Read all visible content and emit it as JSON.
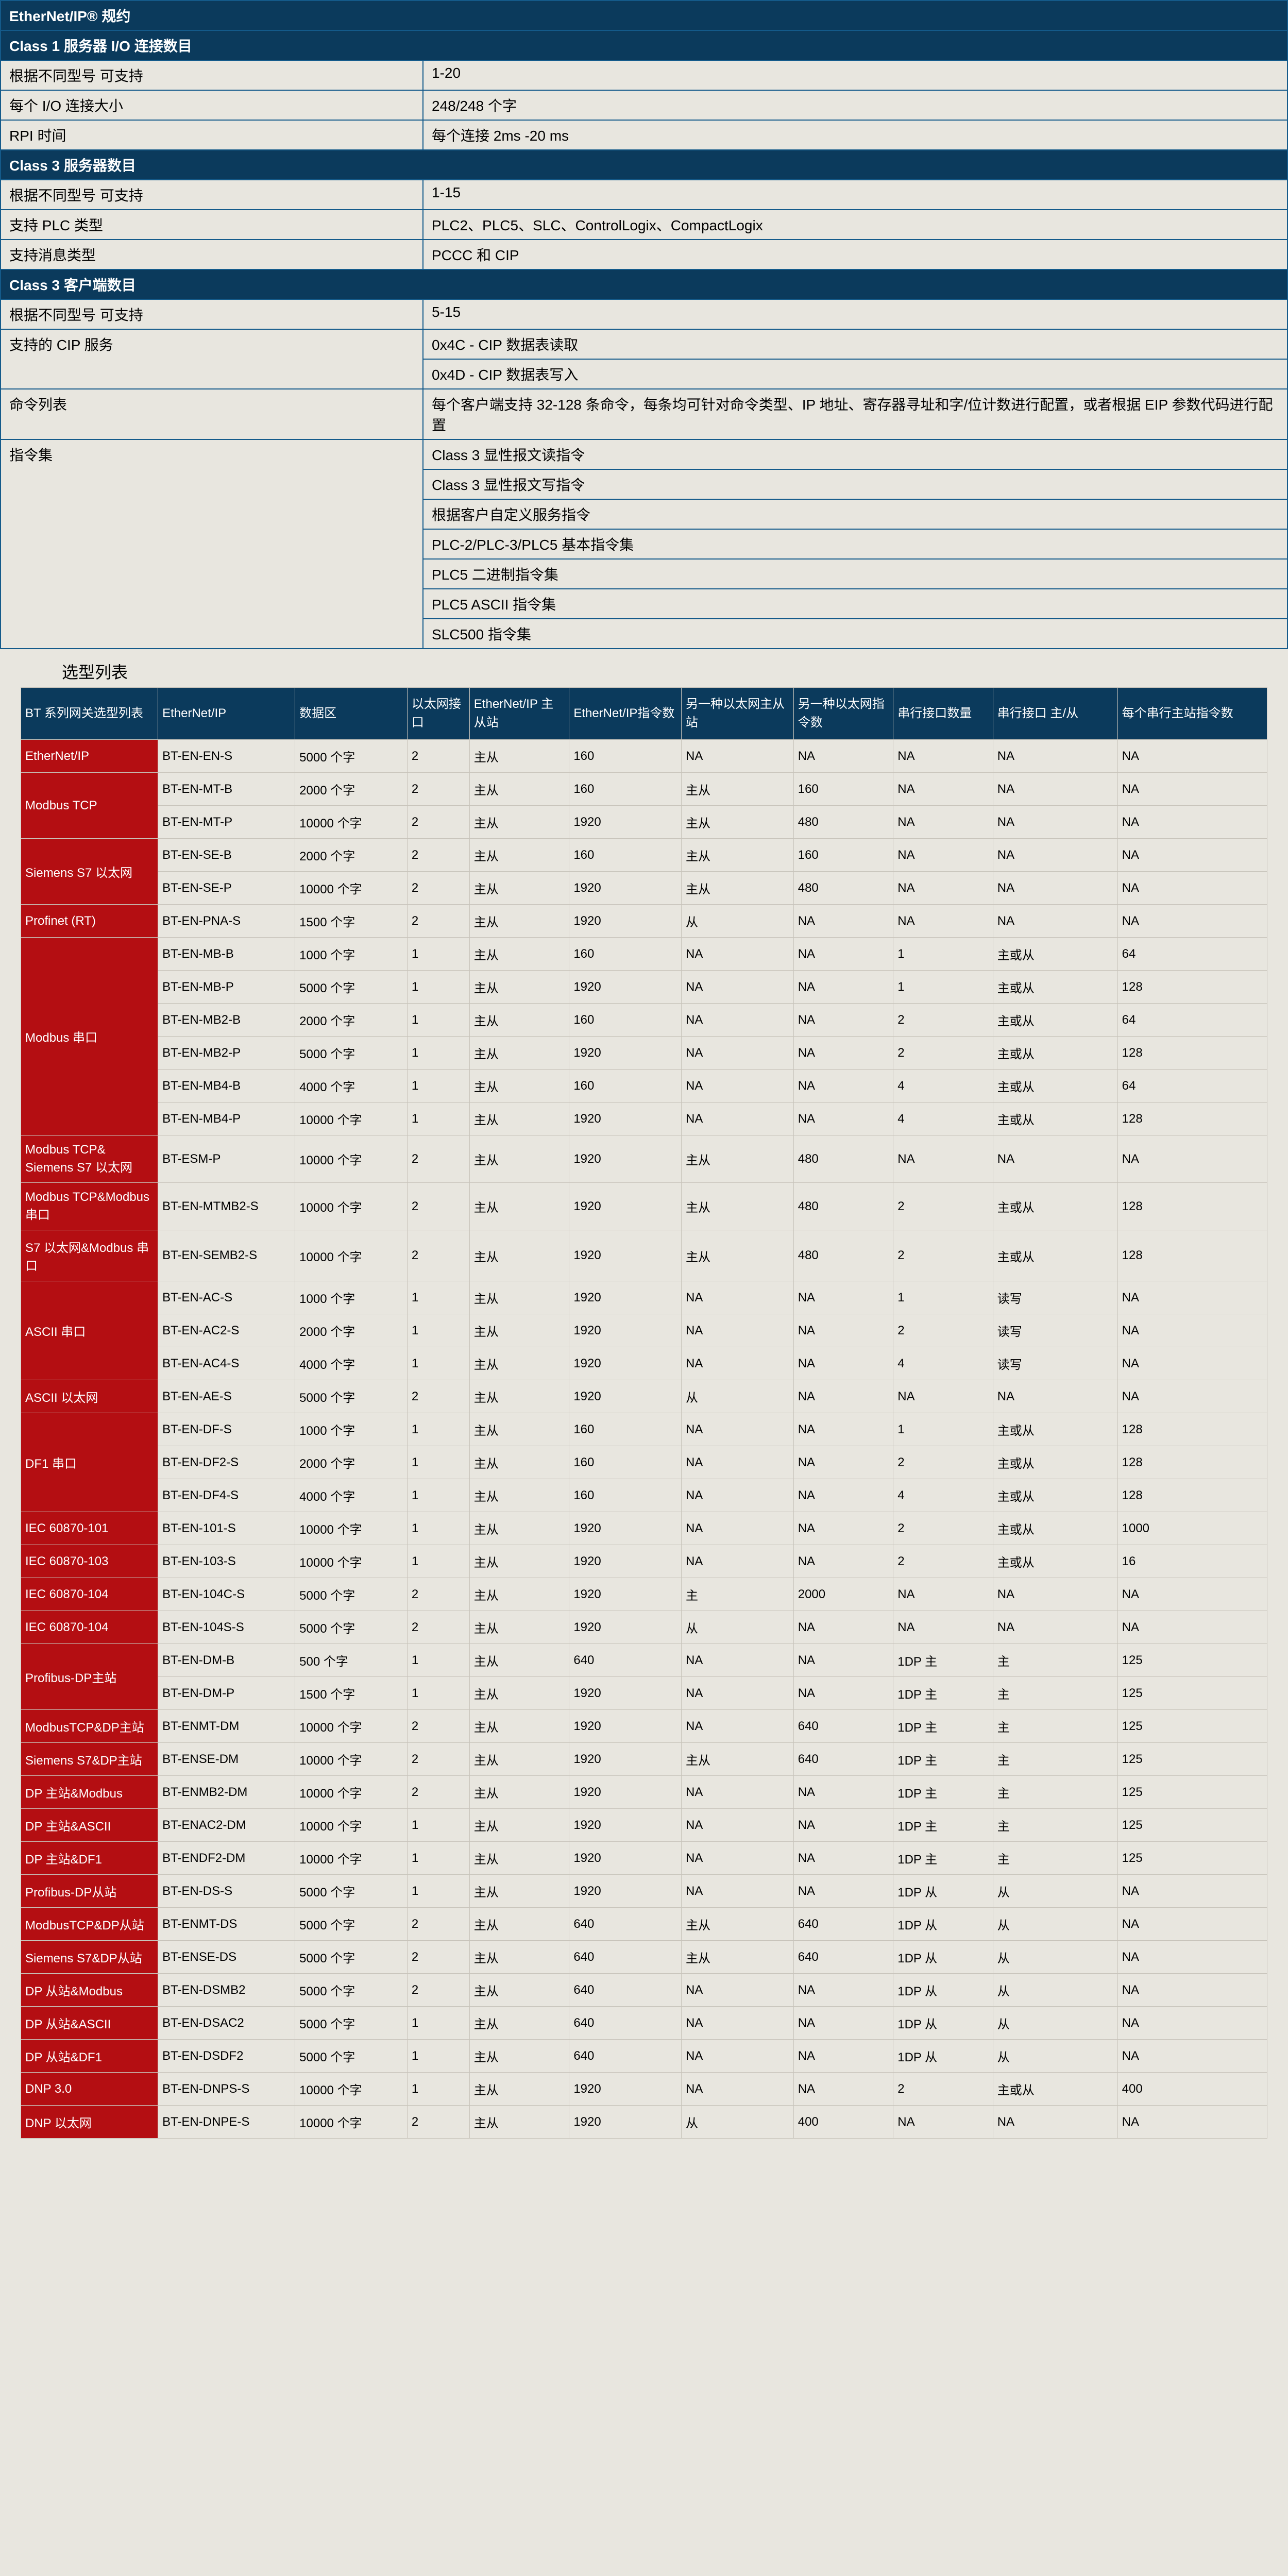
{
  "spec": {
    "title": "EtherNet/IP® 规约",
    "sections": [
      {
        "heading": "Class 1 服务器 I/O 连接数目",
        "rows": [
          [
            "根据不同型号 可支持",
            "1-20"
          ],
          [
            "每个  I/O 连接大小",
            "248/248 个字"
          ],
          [
            "RPI 时间",
            "每个连接 2ms -20 ms"
          ]
        ]
      },
      {
        "heading": "Class 3 服务器数目",
        "rows": [
          [
            "根据不同型号 可支持",
            "1-15"
          ],
          [
            "支持 PLC 类型",
            "PLC2、PLC5、SLC、ControlLogix、CompactLogix"
          ],
          [
            "支持消息类型",
            "PCCC  和  CIP"
          ]
        ]
      },
      {
        "heading": "Class 3 客户端数目",
        "rows": [
          [
            "根据不同型号 可支持",
            "5-15"
          ],
          [
            "支持的 CIP 服务",
            "0x4C - CIP  数据表读取"
          ],
          [
            "",
            "0x4D - CIP  数据表写入"
          ],
          [
            "命令列表",
            "每个客户端支持 32-128 条命令，每条均可针对命令类型、IP 地址、寄存器寻址和字/位计数进行配置，或者根据 EIP 参数代码进行配置"
          ],
          [
            "指令集",
            "Class 3 显性报文读指令"
          ],
          [
            "",
            "Class 3 显性报文写指令"
          ],
          [
            "",
            "根据客户自定义服务指令"
          ],
          [
            "",
            "PLC-2/PLC-3/PLC5 基本指令集"
          ],
          [
            "",
            "PLC5 二进制指令集"
          ],
          [
            "",
            "PLC5 ASCII 指令集"
          ],
          [
            "",
            "SLC500 指令集"
          ]
        ]
      }
    ]
  },
  "sel_title": "选型列表",
  "sel_headers": [
    "BT 系列网关选型列表",
    "EtherNet/IP",
    "数据区",
    "以太网接口",
    "EtherNet/IP 主从站",
    "EtherNet/IP指令数",
    "另一种以太网主从站",
    "另一种以太网指令数",
    "串行接口数量",
    "串行接口 主/从",
    "每个串行主站指令数"
  ],
  "sel_groups": [
    {
      "cat": "EtherNet/IP",
      "rows": [
        [
          "BT-EN-EN-S",
          "5000 个字",
          "2",
          "主从",
          "160",
          "NA",
          "NA",
          "NA",
          "NA",
          "NA"
        ]
      ]
    },
    {
      "cat": "Modbus TCP",
      "rows": [
        [
          "BT-EN-MT-B",
          "2000 个字",
          "2",
          "主从",
          "160",
          "主从",
          "160",
          "NA",
          "NA",
          "NA"
        ],
        [
          "BT-EN-MT-P",
          "10000 个字",
          "2",
          "主从",
          "1920",
          "主从",
          "480",
          "NA",
          "NA",
          "NA"
        ]
      ]
    },
    {
      "cat": "Siemens S7 以太网",
      "rows": [
        [
          "BT-EN-SE-B",
          "2000 个字",
          "2",
          "主从",
          "160",
          "主从",
          "160",
          "NA",
          "NA",
          "NA"
        ],
        [
          "BT-EN-SE-P",
          "10000 个字",
          "2",
          "主从",
          "1920",
          "主从",
          "480",
          "NA",
          "NA",
          "NA"
        ]
      ]
    },
    {
      "cat": "Profinet (RT)",
      "rows": [
        [
          "BT-EN-PNA-S",
          "1500 个字",
          "2",
          "主从",
          "1920",
          "从",
          "NA",
          "NA",
          "NA",
          "NA"
        ]
      ]
    },
    {
      "cat": "Modbus 串口",
      "rows": [
        [
          "BT-EN-MB-B",
          "1000 个字",
          "1",
          "主从",
          "160",
          "NA",
          "NA",
          "1",
          "主或从",
          "64"
        ],
        [
          "BT-EN-MB-P",
          "5000 个字",
          "1",
          "主从",
          "1920",
          "NA",
          "NA",
          "1",
          "主或从",
          "128"
        ],
        [
          "BT-EN-MB2-B",
          "2000 个字",
          "1",
          "主从",
          "160",
          "NA",
          "NA",
          "2",
          "主或从",
          "64"
        ],
        [
          "BT-EN-MB2-P",
          "5000 个字",
          "1",
          "主从",
          "1920",
          "NA",
          "NA",
          "2",
          "主或从",
          "128"
        ],
        [
          "BT-EN-MB4-B",
          "4000 个字",
          "1",
          "主从",
          "160",
          "NA",
          "NA",
          "4",
          "主或从",
          "64"
        ],
        [
          "BT-EN-MB4-P",
          "10000 个字",
          "1",
          "主从",
          "1920",
          "NA",
          "NA",
          "4",
          "主或从",
          "128"
        ]
      ]
    },
    {
      "cat": "Modbus TCP& Siemens S7 以太网",
      "rows": [
        [
          "BT-ESM-P",
          "10000 个字",
          "2",
          "主从",
          "1920",
          "主从",
          "480",
          "NA",
          "NA",
          "NA"
        ]
      ]
    },
    {
      "cat": "Modbus TCP&Modbus 串口",
      "rows": [
        [
          "BT-EN-MTMB2-S",
          "10000 个字",
          "2",
          "主从",
          "1920",
          "主从",
          "480",
          "2",
          "主或从",
          "128"
        ]
      ]
    },
    {
      "cat": "S7 以太网&Modbus 串口",
      "rows": [
        [
          "BT-EN-SEMB2-S",
          "10000 个字",
          "2",
          "主从",
          "1920",
          "主从",
          "480",
          "2",
          "主或从",
          "128"
        ]
      ]
    },
    {
      "cat": "ASCII 串口",
      "rows": [
        [
          "BT-EN-AC-S",
          "1000 个字",
          "1",
          "主从",
          "1920",
          "NA",
          "NA",
          "1",
          "读写",
          "NA"
        ],
        [
          "BT-EN-AC2-S",
          "2000 个字",
          "1",
          "主从",
          "1920",
          "NA",
          "NA",
          "2",
          "读写",
          "NA"
        ],
        [
          "BT-EN-AC4-S",
          "4000 个字",
          "1",
          "主从",
          "1920",
          "NA",
          "NA",
          "4",
          "读写",
          "NA"
        ]
      ]
    },
    {
      "cat": "ASCII 以太网",
      "rows": [
        [
          "BT-EN-AE-S",
          "5000 个字",
          "2",
          "主从",
          "1920",
          "从",
          "NA",
          "NA",
          "NA",
          "NA"
        ]
      ]
    },
    {
      "cat": "DF1 串口",
      "rows": [
        [
          "BT-EN-DF-S",
          "1000 个字",
          "1",
          "主从",
          "160",
          "NA",
          "NA",
          "1",
          "主或从",
          "128"
        ],
        [
          "BT-EN-DF2-S",
          "2000 个字",
          "1",
          "主从",
          "160",
          "NA",
          "NA",
          "2",
          "主或从",
          "128"
        ],
        [
          "BT-EN-DF4-S",
          "4000 个字",
          "1",
          "主从",
          "160",
          "NA",
          "NA",
          "4",
          "主或从",
          "128"
        ]
      ]
    },
    {
      "cat": "IEC 60870-101",
      "rows": [
        [
          "BT-EN-101-S",
          "10000 个字",
          "1",
          "主从",
          "1920",
          "NA",
          "NA",
          "2",
          "主或从",
          "1000"
        ]
      ]
    },
    {
      "cat": "IEC 60870-103",
      "rows": [
        [
          "BT-EN-103-S",
          "10000 个字",
          "1",
          "主从",
          "1920",
          "NA",
          "NA",
          "2",
          "主或从",
          "16"
        ]
      ]
    },
    {
      "cat": "IEC 60870-104",
      "rows": [
        [
          "BT-EN-104C-S",
          "5000 个字",
          "2",
          "主从",
          "1920",
          "主",
          "2000",
          "NA",
          "NA",
          "NA"
        ]
      ]
    },
    {
      "cat": "IEC 60870-104",
      "rows": [
        [
          "BT-EN-104S-S",
          "5000 个字",
          "2",
          "主从",
          "1920",
          "从",
          "NA",
          "NA",
          "NA",
          "NA"
        ]
      ]
    },
    {
      "cat": "Profibus-DP主站",
      "rows": [
        [
          "BT-EN-DM-B",
          "500 个字",
          "1",
          "主从",
          "640",
          "NA",
          "NA",
          "1DP 主",
          "主",
          "125"
        ],
        [
          "BT-EN-DM-P",
          "1500 个字",
          "1",
          "主从",
          "1920",
          "NA",
          "NA",
          "1DP 主",
          "主",
          "125"
        ]
      ]
    },
    {
      "cat": "ModbusTCP&DP主站",
      "rows": [
        [
          "BT-ENMT-DM",
          "10000 个字",
          "2",
          "主从",
          "1920",
          "NA",
          "640",
          "1DP 主",
          "主",
          "125"
        ]
      ]
    },
    {
      "cat": "Siemens S7&DP主站",
      "rows": [
        [
          "BT-ENSE-DM",
          "10000 个字",
          "2",
          "主从",
          "1920",
          "主从",
          "640",
          "1DP 主",
          "主",
          "125"
        ]
      ]
    },
    {
      "cat": "DP 主站&Modbus",
      "rows": [
        [
          "BT-ENMB2-DM",
          "10000 个字",
          "2",
          "主从",
          "1920",
          "NA",
          "NA",
          "1DP 主",
          "主",
          "125"
        ]
      ]
    },
    {
      "cat": "DP 主站&ASCII",
      "rows": [
        [
          "BT-ENAC2-DM",
          "10000 个字",
          "1",
          "主从",
          "1920",
          "NA",
          "NA",
          "1DP 主",
          "主",
          "125"
        ]
      ]
    },
    {
      "cat": "DP 主站&DF1",
      "rows": [
        [
          "BT-ENDF2-DM",
          "10000 个字",
          "1",
          "主从",
          "1920",
          "NA",
          "NA",
          "1DP 主",
          "主",
          "125"
        ]
      ]
    },
    {
      "cat": "Profibus-DP从站",
      "rows": [
        [
          "BT-EN-DS-S",
          "5000 个字",
          "1",
          "主从",
          "1920",
          "NA",
          "NA",
          "1DP 从",
          "从",
          "NA"
        ]
      ]
    },
    {
      "cat": "ModbusTCP&DP从站",
      "rows": [
        [
          "BT-ENMT-DS",
          "5000 个字",
          "2",
          "主从",
          "640",
          "主从",
          "640",
          "1DP 从",
          "从",
          "NA"
        ]
      ]
    },
    {
      "cat": "Siemens S7&DP从站",
      "rows": [
        [
          "BT-ENSE-DS",
          "5000 个字",
          "2",
          "主从",
          "640",
          "主从",
          "640",
          "1DP 从",
          "从",
          "NA"
        ]
      ]
    },
    {
      "cat": "DP 从站&Modbus",
      "rows": [
        [
          "BT-EN-DSMB2",
          "5000 个字",
          "2",
          "主从",
          "640",
          "NA",
          "NA",
          "1DP 从",
          "从",
          "NA"
        ]
      ]
    },
    {
      "cat": "DP 从站&ASCII",
      "rows": [
        [
          "BT-EN-DSAC2",
          "5000 个字",
          "1",
          "主从",
          "640",
          "NA",
          "NA",
          "1DP 从",
          "从",
          "NA"
        ]
      ]
    },
    {
      "cat": "DP 从站&DF1",
      "rows": [
        [
          "BT-EN-DSDF2",
          "5000 个字",
          "1",
          "主从",
          "640",
          "NA",
          "NA",
          "1DP 从",
          "从",
          "NA"
        ]
      ]
    },
    {
      "cat": "DNP 3.0",
      "rows": [
        [
          "BT-EN-DNPS-S",
          "10000 个字",
          "1",
          "主从",
          "1920",
          "NA",
          "NA",
          "2",
          "主或从",
          "400"
        ]
      ]
    },
    {
      "cat": "DNP 以太网",
      "rows": [
        [
          "BT-EN-DNPE-S",
          "10000 个字",
          "2",
          "主从",
          "1920",
          "从",
          "400",
          "NA",
          "NA",
          "NA"
        ]
      ]
    }
  ]
}
